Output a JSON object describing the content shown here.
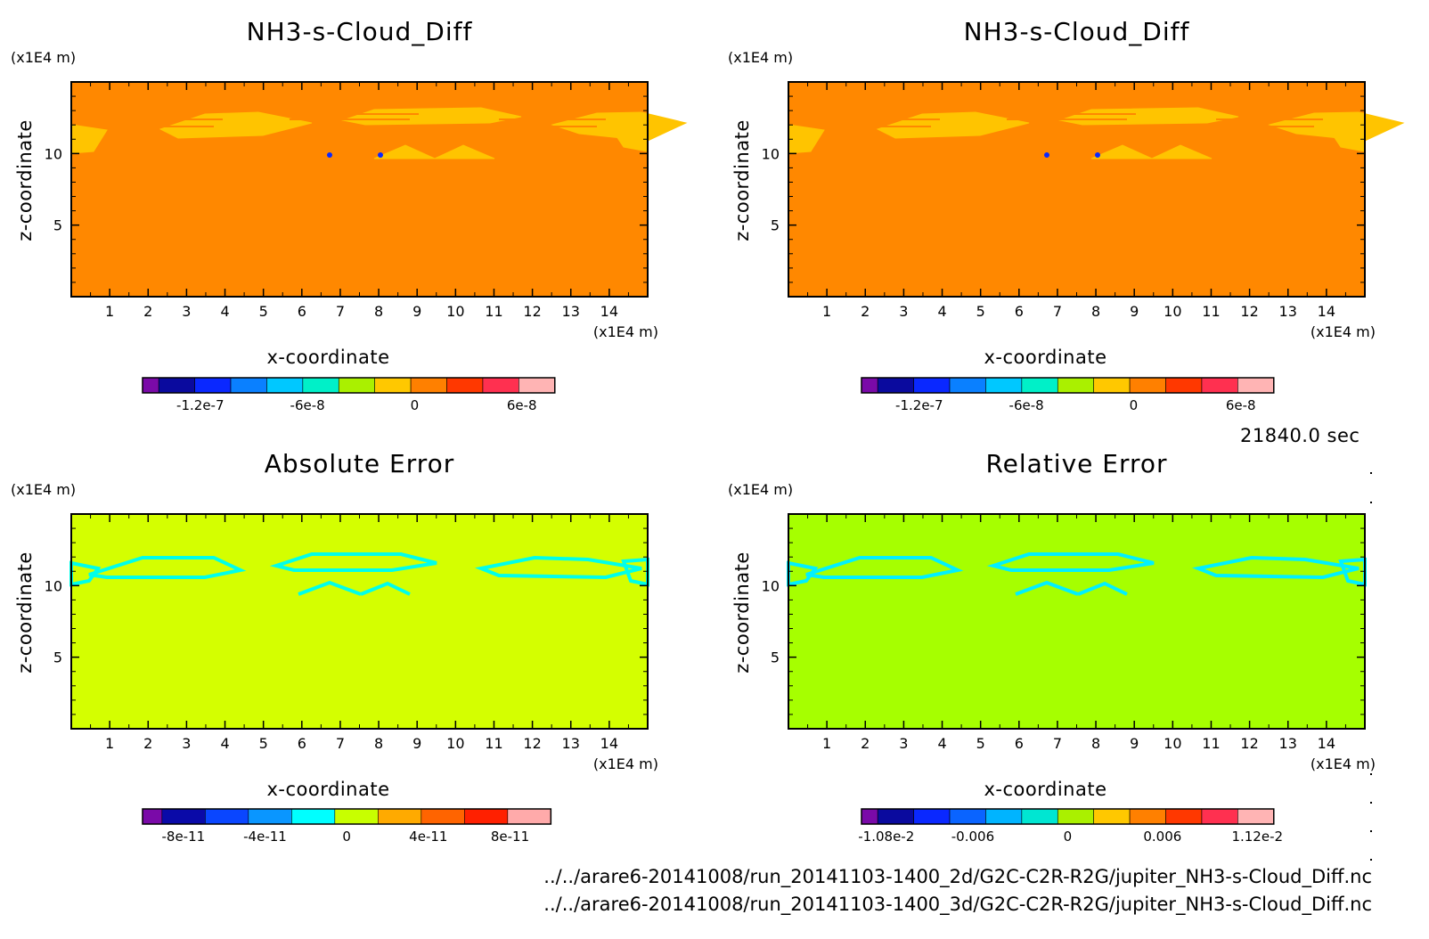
{
  "time_label": "21840.0 sec",
  "files": [
    "../../arare6-20141008/run_20141103-1400_2d/G2C-C2R-R2G/jupiter_NH3-s-Cloud_Diff.nc",
    "../../arare6-20141008/run_20141103-1400_3d/G2C-C2R-R2G/jupiter_NH3-s-Cloud_Diff.nc"
  ],
  "colors": {
    "nh3_background": "#ff8800",
    "nh3_cloud": "#ffc400",
    "abs_background": "#d4ff00",
    "abs_feature": "#00ffea",
    "rel_background": "#a6ff00",
    "rel_feature": "#00f0ff"
  },
  "chart_data": [
    {
      "type": "heatmap",
      "title": "NH3-s-Cloud_Diff",
      "xlabel": "x-coordinate",
      "ylabel": "z-coordinate",
      "x_unit": "(x1E4 m)",
      "y_unit": "(x1E4 m)",
      "xlim": [
        0,
        15
      ],
      "ylim": [
        0,
        15
      ],
      "x_ticks": [
        "1",
        "2",
        "3",
        "4",
        "5",
        "6",
        "7",
        "8",
        "9",
        "10",
        "11",
        "12",
        "13",
        "14"
      ],
      "y_ticks": [
        "5",
        "10"
      ],
      "background_value": 0,
      "colorbar": {
        "colors": [
          "#7a0aa8",
          "#0a0a9e",
          "#0a28ff",
          "#0a80ff",
          "#00c8ff",
          "#00f0c8",
          "#aaf000",
          "#ffc800",
          "#ff8000",
          "#ff3800",
          "#ff3050",
          "#ffb4b4"
        ],
        "tick_labels": [
          "-1.2e-7",
          "-6e-8",
          "0",
          "6e-8"
        ]
      }
    },
    {
      "type": "heatmap",
      "title": "NH3-s-Cloud_Diff",
      "xlabel": "x-coordinate",
      "ylabel": "z-coordinate",
      "x_unit": "(x1E4 m)",
      "y_unit": "(x1E4 m)",
      "xlim": [
        0,
        15
      ],
      "ylim": [
        0,
        15
      ],
      "x_ticks": [
        "1",
        "2",
        "3",
        "4",
        "5",
        "6",
        "7",
        "8",
        "9",
        "10",
        "11",
        "12",
        "13",
        "14"
      ],
      "y_ticks": [
        "5",
        "10"
      ],
      "background_value": 0,
      "colorbar": {
        "colors": [
          "#7a0aa8",
          "#0a0a9e",
          "#0a28ff",
          "#0a80ff",
          "#00c8ff",
          "#00f0c8",
          "#aaf000",
          "#ffc800",
          "#ff8000",
          "#ff3800",
          "#ff3050",
          "#ffb4b4"
        ],
        "tick_labels": [
          "-1.2e-7",
          "-6e-8",
          "0",
          "6e-8"
        ]
      }
    },
    {
      "type": "heatmap",
      "title": "Absolute Error",
      "xlabel": "x-coordinate",
      "ylabel": "z-coordinate",
      "x_unit": "(x1E4 m)",
      "y_unit": "(x1E4 m)",
      "xlim": [
        0,
        15
      ],
      "ylim": [
        0,
        15
      ],
      "x_ticks": [
        "1",
        "2",
        "3",
        "4",
        "5",
        "6",
        "7",
        "8",
        "9",
        "10",
        "11",
        "12",
        "13",
        "14"
      ],
      "y_ticks": [
        "5",
        "10"
      ],
      "background_value": 0,
      "colorbar": {
        "colors": [
          "#7a0aa8",
          "#0a0aa8",
          "#0a46ff",
          "#0a96ff",
          "#00ffff",
          "#c8ff00",
          "#ffaa00",
          "#ff6400",
          "#ff2000",
          "#ffaaaa"
        ],
        "tick_labels": [
          "-8e-11",
          "-4e-11",
          "0",
          "4e-11",
          "8e-11"
        ]
      }
    },
    {
      "type": "heatmap",
      "title": "Relative Error",
      "xlabel": "x-coordinate",
      "ylabel": "z-coordinate",
      "x_unit": "(x1E4 m)",
      "y_unit": "(x1E4 m)",
      "xlim": [
        0,
        15
      ],
      "ylim": [
        0,
        15
      ],
      "x_ticks": [
        "1",
        "2",
        "3",
        "4",
        "5",
        "6",
        "7",
        "8",
        "9",
        "10",
        "11",
        "12",
        "13",
        "14"
      ],
      "y_ticks": [
        "5",
        "10"
      ],
      "background_value": 0,
      "colorbar": {
        "colors": [
          "#7a0aa8",
          "#0a0a9e",
          "#0a28ff",
          "#0a64ff",
          "#00b4ff",
          "#00e6d2",
          "#aaf000",
          "#ffc800",
          "#ff8000",
          "#ff3800",
          "#ff3050",
          "#ffb4b4"
        ],
        "tick_labels": [
          "-1.08e-2",
          "-0.006",
          "0",
          "0.006",
          "1.12e-2"
        ]
      }
    }
  ]
}
